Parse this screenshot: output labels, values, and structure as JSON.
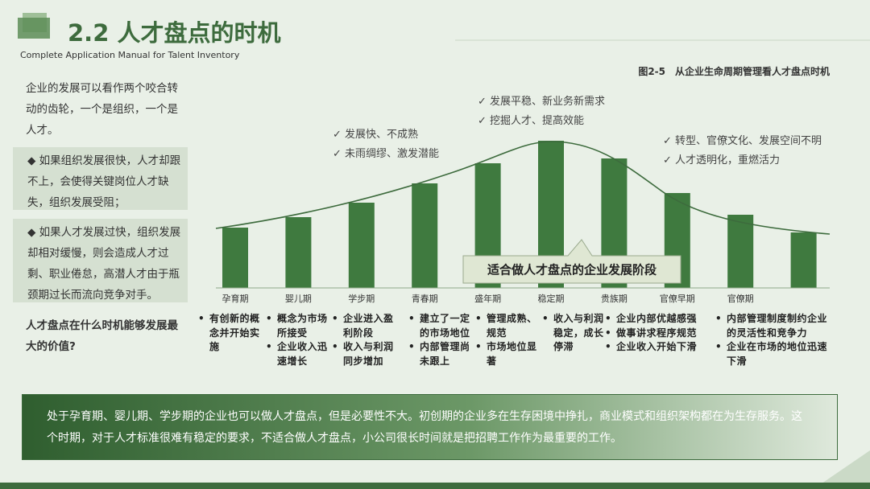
{
  "header": {
    "title": "2.2 人才盘点的时机",
    "subtitle": "Complete Application Manual for Talent Inventory"
  },
  "intro": {
    "paragraph": "企业的发展可以看作两个咬合转动的齿轮，一个是组织，一个是人才。",
    "points": [
      "◆ 如果组织发展很快，人才却跟不上，会使得关键岗位人才缺失，组织发展受阻；",
      "◆ 如果人才发展过快，组织发展却相对缓慢，则会造成人才过剩、职业倦怠，高潜人才由于瓶颈期过长而流向竞争对手。"
    ],
    "question": "人才盘点在什么时机能够发展最大的价值?"
  },
  "chart_data": {
    "type": "bar",
    "title": "图2-5　从企业生命周期管理看人才盘点时机",
    "categories": [
      "孕育期",
      "婴儿期",
      "学步期",
      "青春期",
      "盛年期",
      "稳定期",
      "贵族期",
      "官僚早期",
      "官僚期",
      null
    ],
    "values": [
      75,
      88,
      106,
      130,
      155,
      183,
      161,
      118,
      91,
      69
    ],
    "color": "#3f7a3f",
    "ylim": [
      0,
      200
    ],
    "annotations": [
      [
        "✓ 发展快、不成熟",
        "✓ 未雨绸缪、激发潜能"
      ],
      [
        "✓ 发展平稳、新业务新需求",
        "✓ 挖掘人才、提高效能"
      ],
      [
        "✓ 转型、官僚文化、发展空间不明",
        "✓ 人才透明化，重燃活力"
      ]
    ],
    "callout": "适合做人才盘点的企业发展阶段"
  },
  "stage_notes": [
    [
      "有创新的概念并开始实施"
    ],
    [
      "概念为市场所接受",
      "企业收入迅速增长"
    ],
    [
      "企业进入盈利阶段",
      "收入与利润同步增加"
    ],
    [
      "建立了一定的市场地位",
      "内部管理尚未跟上"
    ],
    [
      "管理成熟、规范",
      "市场地位显著"
    ],
    [
      "收入与利润稳定，成长停滞"
    ],
    [
      "企业内部优越感强",
      "做事讲求程序规范",
      "企业收入开始下滑"
    ],
    [
      "内部管理制度制约企业的灵活性和竞争力",
      "企业在市场的地位迅速下滑"
    ]
  ],
  "summary": "处于孕育期、婴儿期、学步期的企业也可以做人才盘点，但是必要性不大。初创期的企业多在生存困境中挣扎，商业模式和组织架构都在为生存服务。这个时期，对于人才标准很难有稳定的要求，不适合做人才盘点，小公司很长时间就是把招聘工作作为最重要的工作。"
}
